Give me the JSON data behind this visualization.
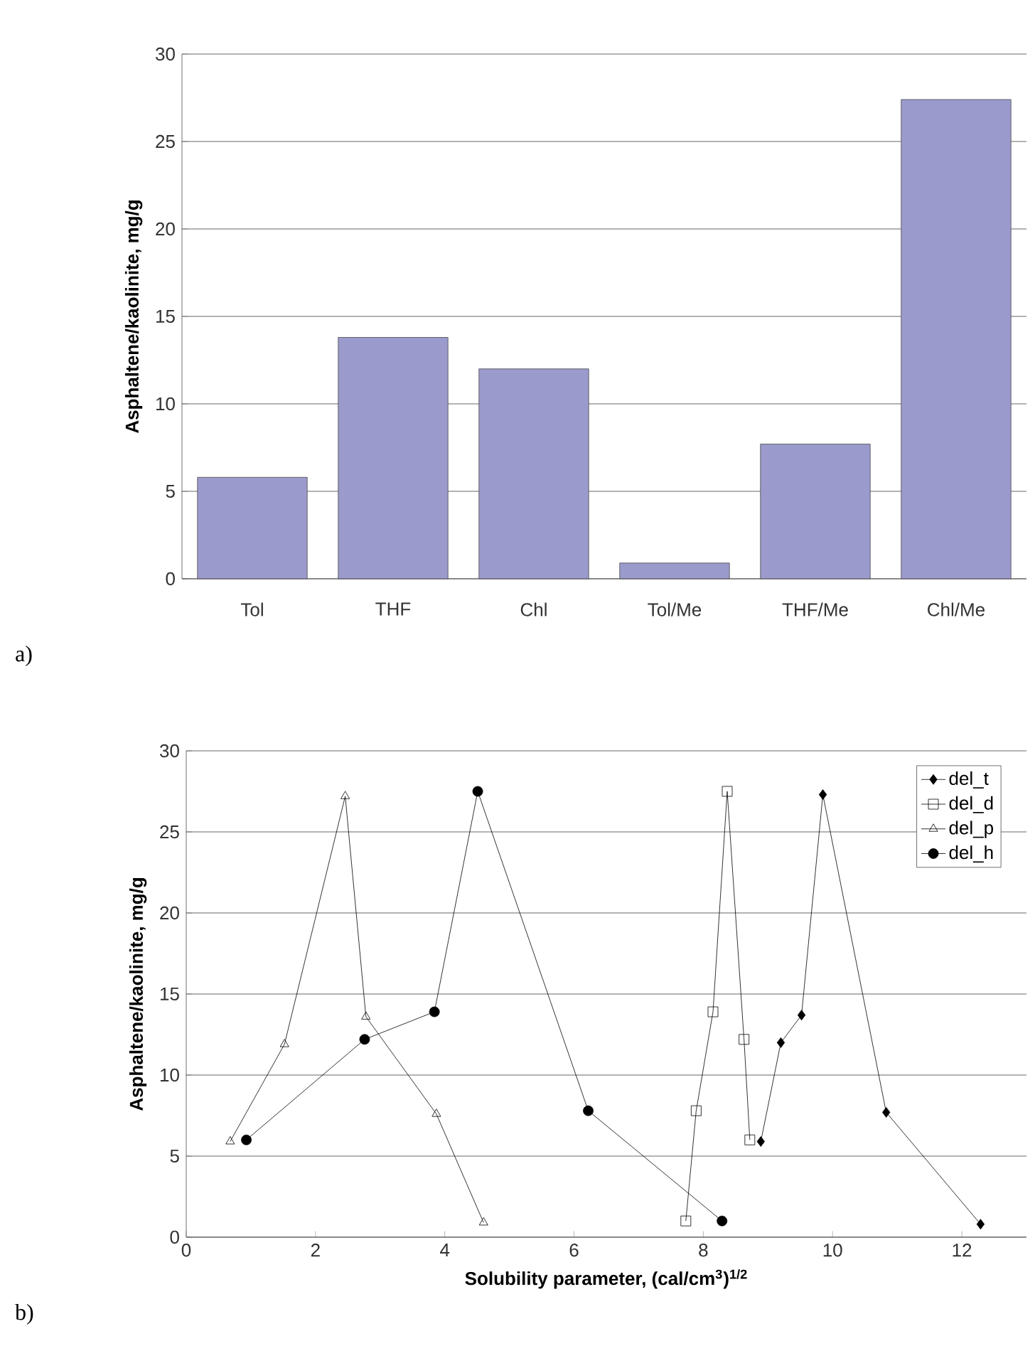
{
  "chart_data": [
    {
      "type": "bar",
      "title": "a)",
      "ylabel": "Asphaltene/kaolinite, mg/g",
      "categories": [
        "Tol",
        "THF",
        "Chl",
        "Tol/Me",
        "THF/Me",
        "Chl/Me"
      ],
      "values": [
        5.8,
        13.8,
        12.0,
        0.9,
        7.7,
        27.4
      ],
      "color": "#9a9acc",
      "ylim": [
        0,
        30
      ],
      "yticks": [
        0,
        5,
        10,
        15,
        20,
        25,
        30
      ],
      "grid": "y"
    },
    {
      "type": "line",
      "title": "b)",
      "ylabel": "Asphaltene/kaolinite, mg/g",
      "xlabel": "Solubility parameter, (cal/cm$^{3}$)$^{1/2}$",
      "xlim": [
        0,
        13
      ],
      "xticks": [
        0,
        2,
        4,
        6,
        8,
        10,
        12
      ],
      "ylim": [
        0,
        30
      ],
      "yticks": [
        0,
        5,
        10,
        15,
        20,
        25,
        30
      ],
      "grid": "y",
      "legend": "top right",
      "series": [
        {
          "name": "del_t",
          "color": "#000000",
          "marker": "diamond",
          "x": [
            8.89,
            9.2,
            9.52,
            9.85,
            10.83,
            12.29
          ],
          "values": [
            5.9,
            12.0,
            13.7,
            27.3,
            7.7,
            0.8
          ]
        },
        {
          "name": "del_d",
          "color": "#000000",
          "marker": "square",
          "x": [
            7.73,
            7.89,
            8.15,
            8.37,
            8.63,
            8.72
          ],
          "values": [
            1.0,
            7.8,
            13.9,
            27.5,
            12.2,
            6.0
          ]
        },
        {
          "name": "del_p",
          "color": "#000000",
          "marker": "triangle",
          "x": [
            0.68,
            1.52,
            2.46,
            2.78,
            3.87,
            4.6
          ],
          "values": [
            5.9,
            11.9,
            27.2,
            13.6,
            7.6,
            0.9
          ]
        },
        {
          "name": "del_h",
          "color": "#000000",
          "marker": "circle",
          "x": [
            0.93,
            2.76,
            3.84,
            4.51,
            6.22,
            8.29
          ],
          "values": [
            6.0,
            12.2,
            13.9,
            27.5,
            7.8,
            1.0
          ]
        }
      ]
    }
  ]
}
